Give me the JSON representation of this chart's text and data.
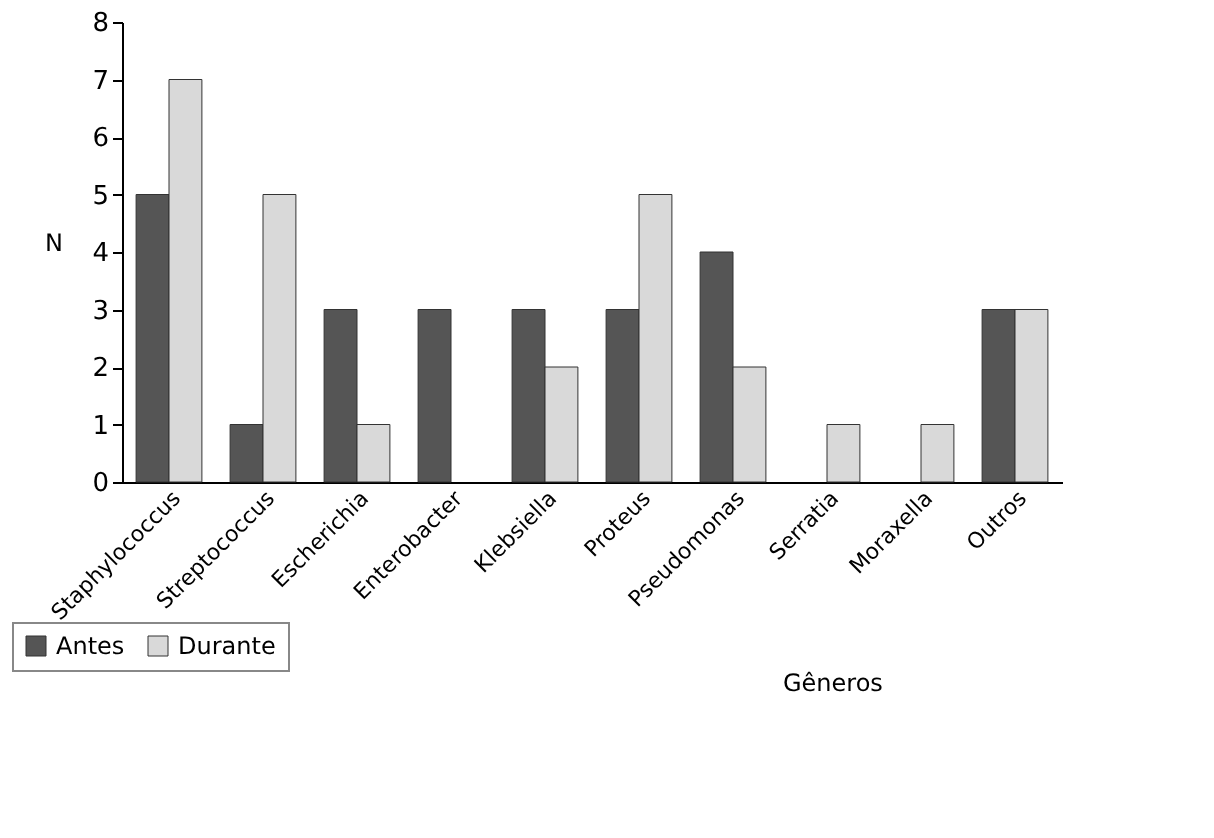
{
  "chart_data": {
    "type": "bar",
    "xlabel": "Gêneros",
    "ylabel": "N",
    "categories": [
      "Staphylococcus",
      "Streptococcus",
      "Escherichia",
      "Enterobacter",
      "Klebsiella",
      "Proteus",
      "Pseudomonas",
      "Serratia",
      "Moraxella",
      "Outros"
    ],
    "series": [
      {
        "name": "Antes",
        "color": "#555555",
        "values": [
          5,
          1,
          3,
          3,
          3,
          3,
          4,
          0,
          0,
          3
        ]
      },
      {
        "name": "Durante",
        "color": "#d9d9d9",
        "values": [
          7,
          5,
          1,
          0,
          2,
          5,
          2,
          1,
          1,
          3
        ]
      }
    ],
    "ylim": [
      0,
      8
    ],
    "yticks": [
      0,
      1,
      2,
      3,
      4,
      5,
      6,
      7,
      8
    ],
    "grid": false,
    "legend": "bottom left"
  }
}
